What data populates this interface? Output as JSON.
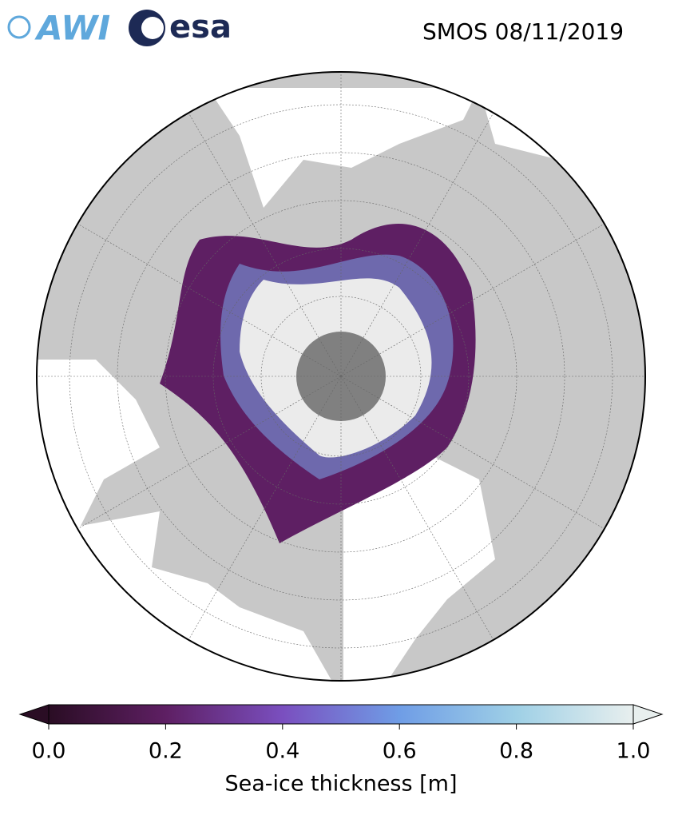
{
  "header": {
    "logo_awi": "AWI",
    "logo_esa": "esa",
    "title": "SMOS 08/11/2019"
  },
  "colorbar": {
    "label": "Sea-ice thickness [m]",
    "lim": [
      0,
      1
    ],
    "ticks": [
      {
        "value": 0,
        "label": "0.0"
      },
      {
        "value": 0.2,
        "label": "0.2"
      },
      {
        "value": 0.4,
        "label": "0.4"
      },
      {
        "value": 0.6,
        "label": "0.6"
      },
      {
        "value": 0.8,
        "label": "0.8"
      },
      {
        "value": 1,
        "label": "1.0"
      }
    ],
    "colors": [
      "#2a0d24",
      "#5e1f63",
      "#7a4fbf",
      "#6f9de6",
      "#9fd0e6",
      "#e8efee"
    ]
  }
}
